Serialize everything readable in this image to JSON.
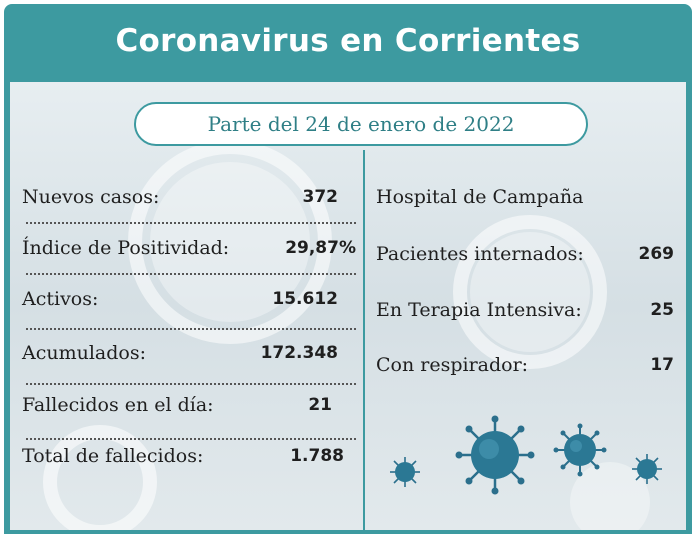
{
  "title": "Coronavirus en Corrientes",
  "date_label": "Parte del 24 de enero de 2022",
  "left_items": [
    {
      "label": "Nuevos casos:",
      "value": "372"
    },
    {
      "label": "Índice de Positividad:",
      "value": "29,87%"
    },
    {
      "label": "Activos:",
      "value": "15.612"
    },
    {
      "label": "Acumulados:",
      "value": "172.348"
    },
    {
      "label": "Fallecidos en el día:",
      "value": "21"
    },
    {
      "label": "Total de fallecidos:",
      "value": "1.788"
    }
  ],
  "right_heading": "Hospital de Campaña",
  "right_items": [
    {
      "label": "Pacientes internados:",
      "value": "269"
    },
    {
      "label": "En Terapia Intensiva:",
      "value": "25"
    },
    {
      "label": "Con respirador:",
      "value": "17"
    }
  ],
  "colors": {
    "accent": "#3d9aa0",
    "virus": "#2b6f8c"
  },
  "icons": [
    "virus-icon"
  ]
}
